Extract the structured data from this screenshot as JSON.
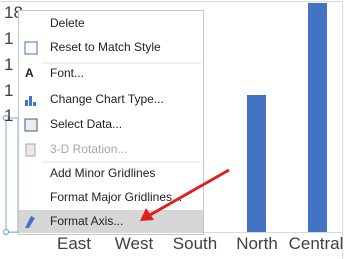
{
  "axis_labels": {
    "y": [
      "18",
      "1",
      "1",
      "1",
      "1"
    ],
    "x": [
      "East",
      "West",
      "South",
      "North",
      "Central"
    ]
  },
  "menu": {
    "items": [
      {
        "label": "Delete",
        "enabled": true
      },
      {
        "label": "Reset to Match Style",
        "enabled": true
      },
      {
        "label": "Font...",
        "enabled": true
      },
      {
        "label": "Change Chart Type...",
        "enabled": true
      },
      {
        "label": "Select Data...",
        "enabled": true
      },
      {
        "label": "3-D Rotation...",
        "enabled": false
      },
      {
        "label": "Add Minor Gridlines",
        "enabled": true
      },
      {
        "label": "Format Major Gridlines...",
        "enabled": true
      },
      {
        "label": "Format Axis...",
        "enabled": true,
        "highlighted": true
      }
    ]
  }
}
